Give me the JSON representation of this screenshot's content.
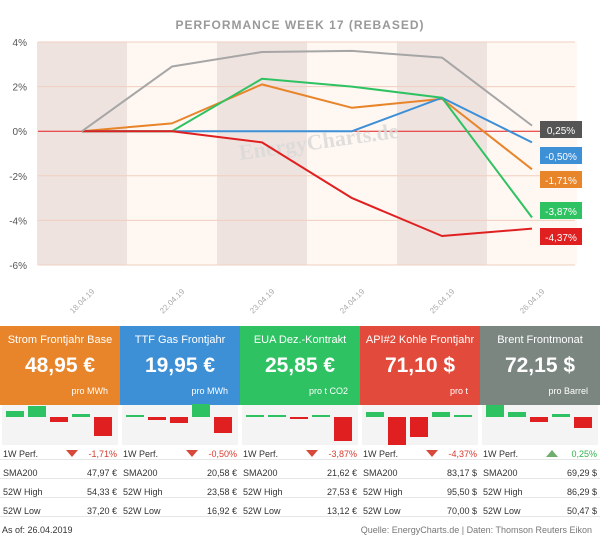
{
  "chart_data": {
    "type": "line",
    "title": "PERFORMANCE   WEEK 17 (REBASED)",
    "x": [
      "18.04.19",
      "22.04.19",
      "23.04.19",
      "24.04.19",
      "25.04.19",
      "26.04.19"
    ],
    "ylim": [
      -6,
      4
    ],
    "yticks": [
      -6,
      -4,
      -2,
      0,
      2,
      4
    ],
    "ytick_labels": [
      "-6%",
      "-4%",
      "-2%",
      "0%",
      "2%",
      "4%"
    ],
    "shaded_days": [
      "18.04.19",
      "23.04.19",
      "25.04.19"
    ],
    "series": [
      {
        "name": "Strom Frontjahr Base",
        "color": "#e8842a",
        "points": [
          [
            0,
            0
          ],
          [
            1,
            0.35
          ],
          [
            2,
            2.1
          ],
          [
            3,
            1.05
          ],
          [
            4,
            1.45
          ],
          [
            5,
            -1.71
          ]
        ],
        "end_label": "-1,71%"
      },
      {
        "name": "TTF Gas Frontjahr",
        "color": "#3d8fd6",
        "points": [
          [
            0,
            0
          ],
          [
            1,
            0
          ],
          [
            2,
            0
          ],
          [
            3,
            0.0
          ],
          [
            4,
            1.5
          ],
          [
            5,
            -0.5
          ]
        ],
        "end_label": "-0,50%"
      },
      {
        "name": "EUA Dez.-Kontrakt",
        "color": "#2fc262",
        "points": [
          [
            0,
            0
          ],
          [
            1,
            0
          ],
          [
            2,
            2.35
          ],
          [
            3,
            2.0
          ],
          [
            4,
            1.5
          ],
          [
            5,
            -3.87
          ]
        ],
        "end_label": "-3,87%"
      },
      {
        "name": "API#2 Kohle Frontjahr",
        "color": "#e02020",
        "points": [
          [
            0,
            0
          ],
          [
            1,
            0
          ],
          [
            2,
            -0.5
          ],
          [
            3,
            -3.0
          ],
          [
            4,
            -4.7
          ],
          [
            5,
            -4.37
          ]
        ],
        "end_label": "-4,37%"
      },
      {
        "name": "Brent Frontmonat",
        "color": "#a6a6a6",
        "points": [
          [
            0,
            0
          ],
          [
            1,
            2.9
          ],
          [
            2,
            3.55
          ],
          [
            3,
            3.6
          ],
          [
            4,
            3.3
          ],
          [
            5,
            0.25
          ]
        ],
        "end_label": "0,25%"
      }
    ]
  },
  "watermark": "EnergyCharts.de",
  "cards": [
    {
      "title": "Strom Frontjahr Base",
      "value": "48,95 €",
      "unit": "pro MWh",
      "color": "#e8842a"
    },
    {
      "title": "TTF Gas Frontjahr",
      "value": "19,95 €",
      "unit": "pro MWh",
      "color": "#3d8fd6"
    },
    {
      "title": "EUA Dez.-Kontrakt",
      "value": "25,85 €",
      "unit": "pro t CO2",
      "color": "#2fc262"
    },
    {
      "title": "API#2 Kohle Frontjahr",
      "value": "71,10 $",
      "unit": "pro t",
      "color": "#e24b3c"
    },
    {
      "title": "Brent Frontmonat",
      "value": "72,15 $",
      "unit": "pro Barrel",
      "color": "#7b8680"
    }
  ],
  "daily_changes": [
    [
      0.6,
      1.1,
      -0.5,
      0.3,
      -1.9
    ],
    [
      0.1,
      -0.3,
      -0.6,
      1.3,
      -1.6
    ],
    [
      0.1,
      0.1,
      -0.2,
      0.0,
      -2.4
    ],
    [
      0.5,
      -2.8,
      -2.0,
      0.5,
      0.0
    ],
    [
      1.2,
      0.5,
      -0.5,
      0.3,
      -1.1
    ]
  ],
  "stats": [
    {
      "perf_label": "1W Perf.",
      "perf_value": "-1,71%",
      "perf_dir": "down",
      "sma_label": "SMA200",
      "sma_value": "47,97 €",
      "high_label": "52W High",
      "high_value": "54,33 €",
      "low_label": "52W Low",
      "low_value": "37,20 €"
    },
    {
      "perf_label": "1W Perf.",
      "perf_value": "-0,50%",
      "perf_dir": "down",
      "sma_label": "SMA200",
      "sma_value": "20,58 €",
      "high_label": "52W High",
      "high_value": "23,58 €",
      "low_label": "52W Low",
      "low_value": "16,92 €"
    },
    {
      "perf_label": "1W Perf.",
      "perf_value": "-3,87%",
      "perf_dir": "down",
      "sma_label": "SMA200",
      "sma_value": "21,62 €",
      "high_label": "52W High",
      "high_value": "27,53 €",
      "low_label": "52W Low",
      "low_value": "13,12 €"
    },
    {
      "perf_label": "1W Perf.",
      "perf_value": "-4,37%",
      "perf_dir": "down",
      "sma_label": "SMA200",
      "sma_value": "83,17 $",
      "high_label": "52W High",
      "high_value": "95,50 $",
      "low_label": "52W Low",
      "low_value": "70,00 $"
    },
    {
      "perf_label": "1W Perf.",
      "perf_value": "0,25%",
      "perf_dir": "up",
      "sma_label": "SMA200",
      "sma_value": "69,29 $",
      "high_label": "52W High",
      "high_value": "86,29 $",
      "low_label": "52W Low",
      "low_value": "50,47 $"
    }
  ],
  "footer": {
    "as_of": "As of: 26.04.2019",
    "source": "Quelle: EnergyCharts.de | Daten: Thomson Reuters Eikon"
  }
}
